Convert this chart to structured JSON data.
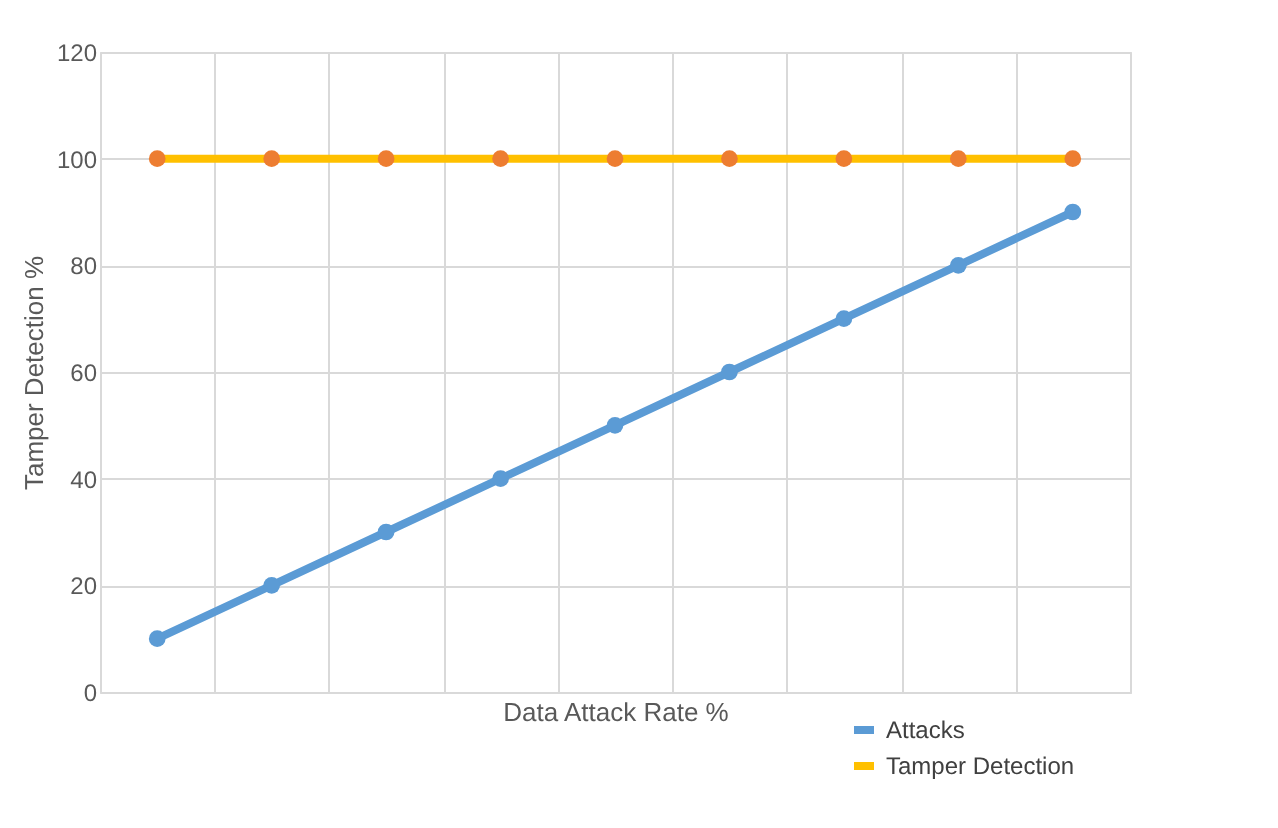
{
  "chart_data": {
    "type": "line",
    "xlabel": "Data Attack Rate %",
    "ylabel": "Tamper Detection %",
    "categories": [
      null,
      null,
      null,
      null,
      null,
      null,
      null,
      null,
      null
    ],
    "series": [
      {
        "name": "Attacks",
        "color": "#5b9bd5",
        "values": [
          10,
          20,
          30,
          40,
          50,
          60,
          70,
          80,
          90
        ]
      },
      {
        "name": "Tamper Detection",
        "color": "#ffc000",
        "colors": [
          "#ed7d31",
          "#ed7d31",
          "#ed7d31",
          "#ed7d31",
          "#ed7d31",
          "#ed7d31",
          "#ed7d31",
          "#ed7d31",
          "#ed7d31"
        ],
        "values": [
          100,
          100,
          100,
          100,
          100,
          100,
          100,
          100,
          100
        ]
      }
    ],
    "ylim": [
      0,
      120
    ],
    "yticks": [
      0,
      20,
      40,
      60,
      80,
      100,
      120
    ],
    "grid": true,
    "legend": "bottom right",
    "marker": "circle",
    "line_style": "solid",
    "tick_labels": "y"
  }
}
